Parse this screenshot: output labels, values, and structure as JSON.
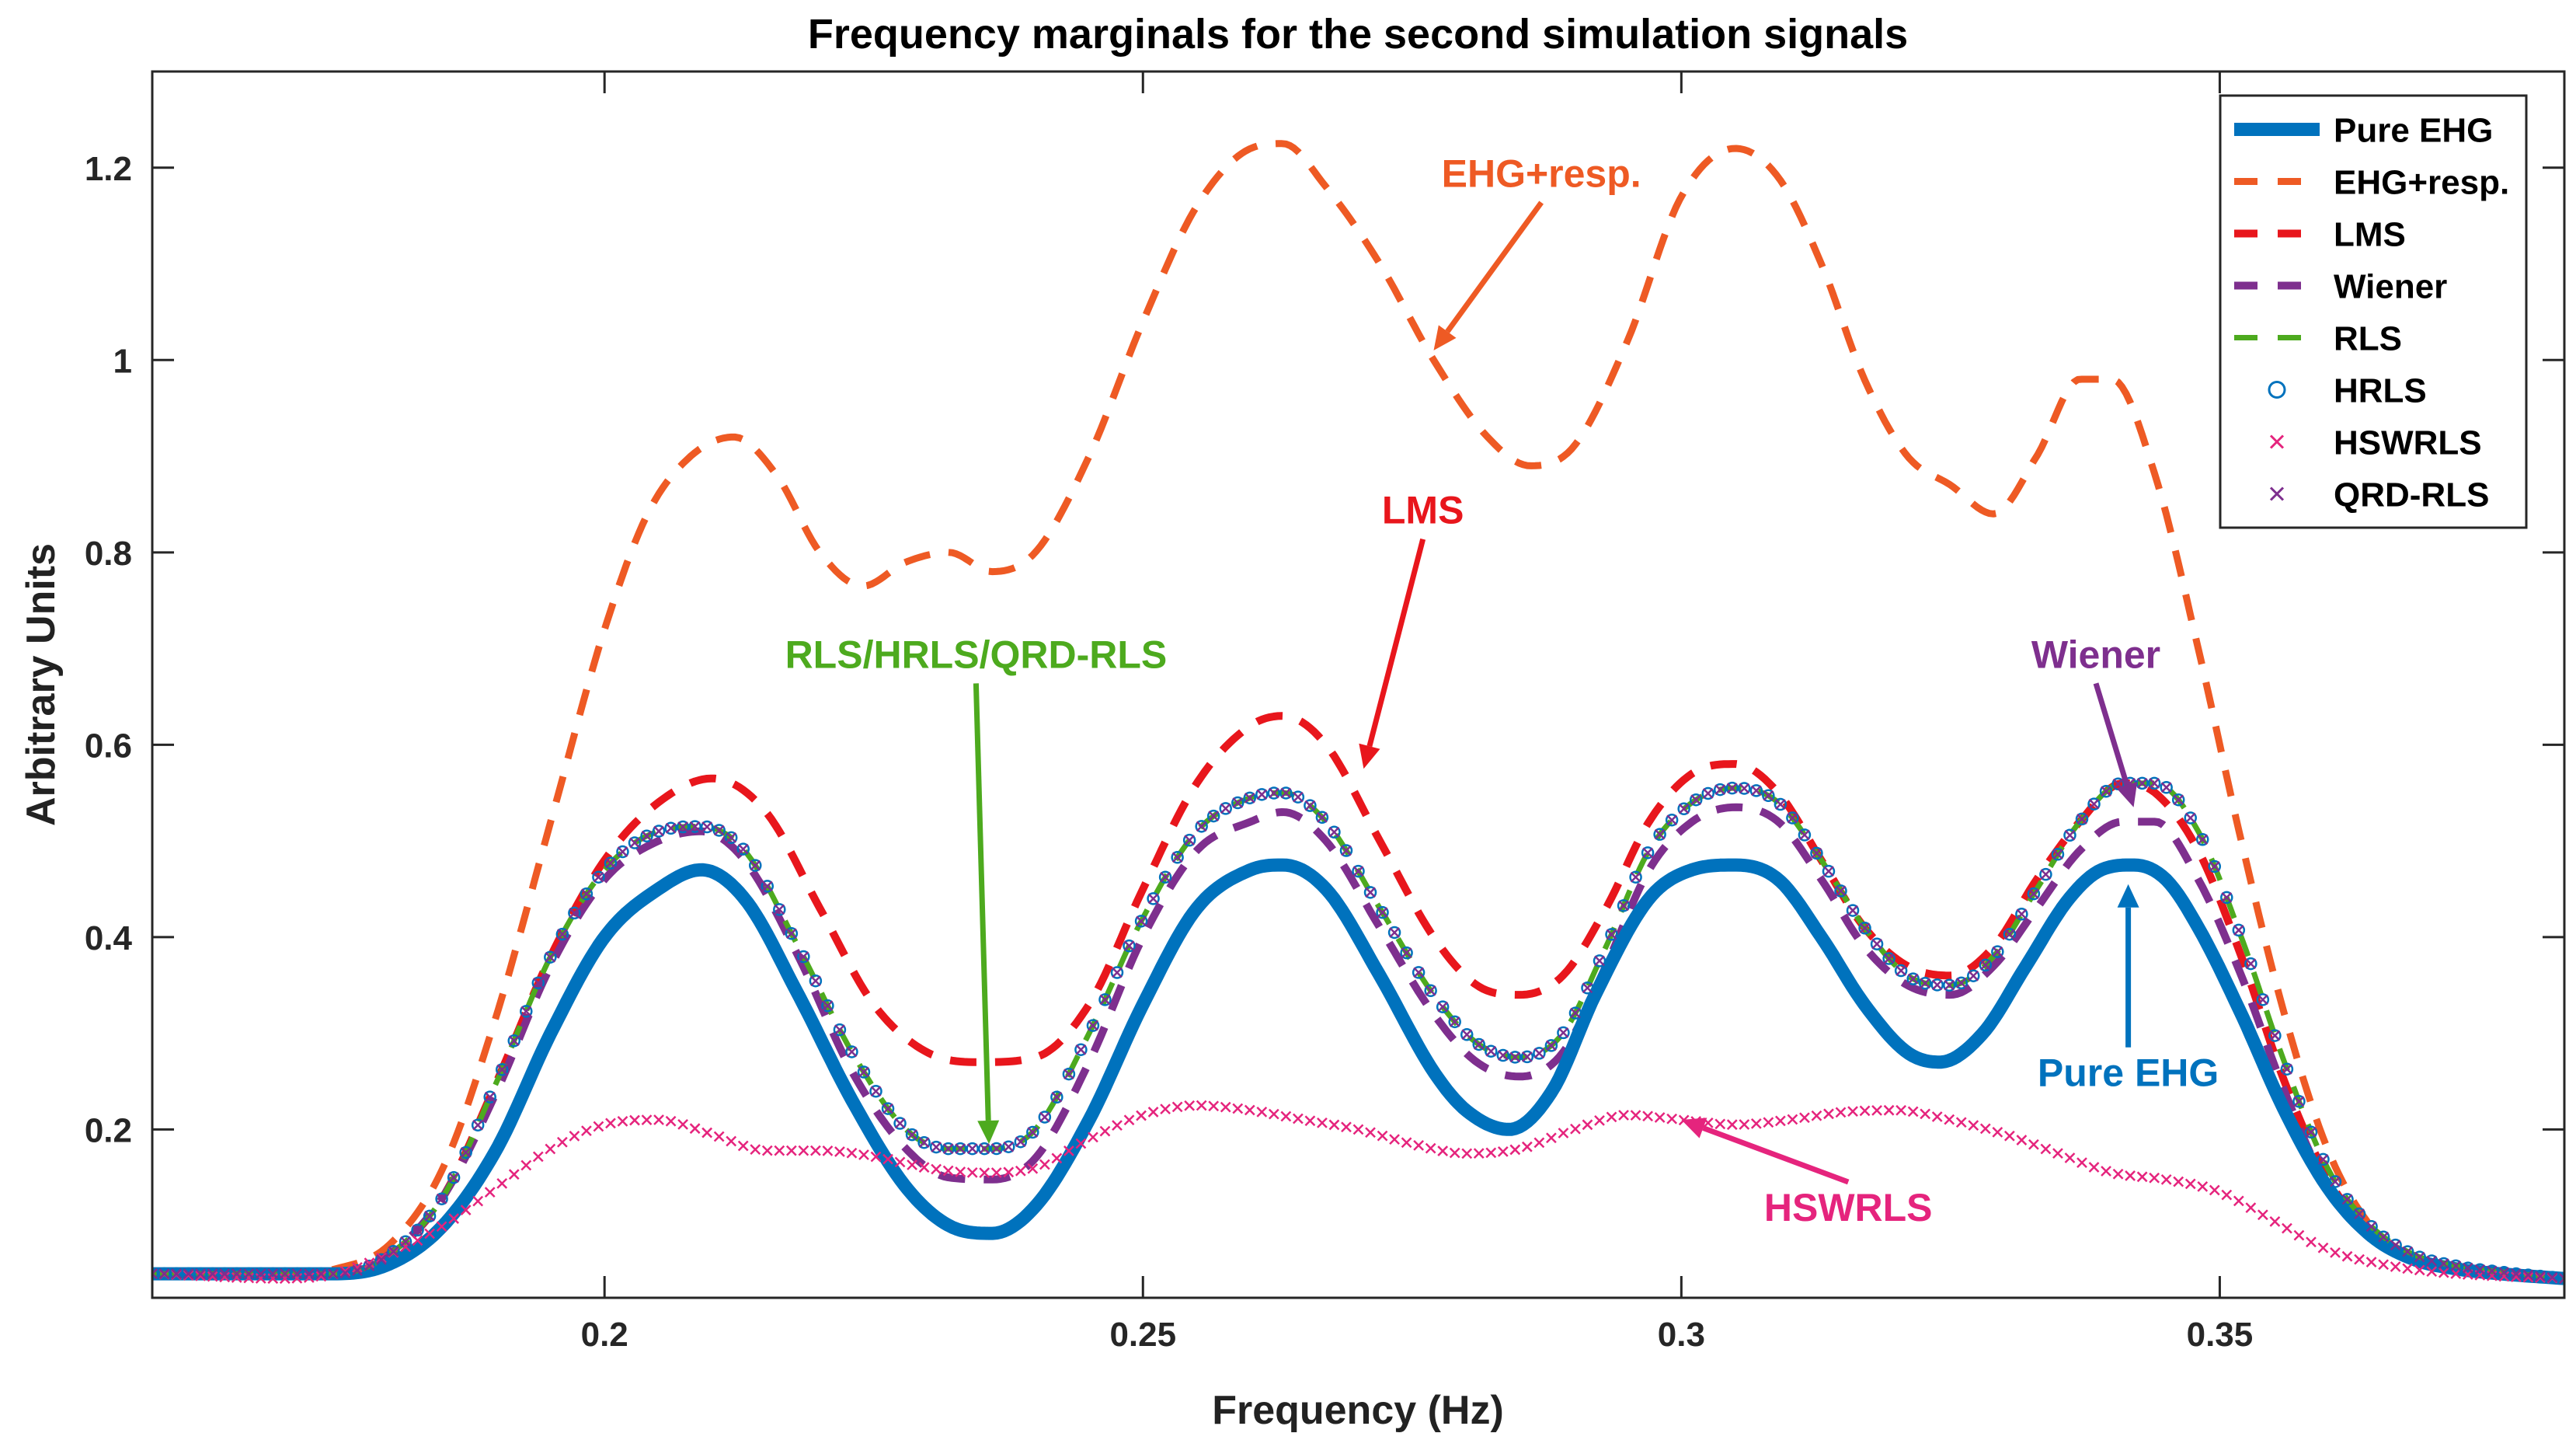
{
  "chart_data": {
    "type": "line",
    "title": "Frequency marginals for the second simulation signals",
    "xlabel": "Frequency (Hz)",
    "ylabel": "Arbitrary Units",
    "xlim": [
      0.158,
      0.382
    ],
    "ylim": [
      0.025,
      1.3
    ],
    "xticks": [
      0.2,
      0.25,
      0.3,
      0.35
    ],
    "xtick_labels": [
      "0.2",
      "0.25",
      "0.3",
      "0.35"
    ],
    "yticks": [
      0.2,
      0.4,
      0.6,
      0.8,
      1.0,
      1.2
    ],
    "ytick_labels": [
      "0.2",
      "0.4",
      "0.6",
      "0.8",
      "1",
      "1.2"
    ],
    "grid": false,
    "legend_position": "top-right",
    "series": [
      {
        "name": "Pure EHG",
        "style": "solid",
        "marker": "none",
        "color": "#0072BD",
        "x": [
          0.158,
          0.17,
          0.175,
          0.18,
          0.185,
          0.19,
          0.195,
          0.2,
          0.205,
          0.209,
          0.213,
          0.218,
          0.223,
          0.228,
          0.232,
          0.236,
          0.24,
          0.245,
          0.25,
          0.255,
          0.26,
          0.263,
          0.267,
          0.272,
          0.277,
          0.28,
          0.284,
          0.288,
          0.292,
          0.297,
          0.301,
          0.305,
          0.309,
          0.313,
          0.317,
          0.321,
          0.324,
          0.328,
          0.332,
          0.336,
          0.339,
          0.342,
          0.345,
          0.348,
          0.352,
          0.356,
          0.36,
          0.364,
          0.368,
          0.372,
          0.376,
          0.382
        ],
        "y": [
          0.05,
          0.05,
          0.05,
          0.06,
          0.1,
          0.18,
          0.3,
          0.4,
          0.45,
          0.47,
          0.44,
          0.34,
          0.23,
          0.14,
          0.1,
          0.092,
          0.12,
          0.21,
          0.33,
          0.43,
          0.47,
          0.475,
          0.45,
          0.36,
          0.26,
          0.22,
          0.2,
          0.24,
          0.34,
          0.44,
          0.47,
          0.475,
          0.46,
          0.4,
          0.33,
          0.28,
          0.27,
          0.3,
          0.37,
          0.44,
          0.47,
          0.475,
          0.46,
          0.41,
          0.32,
          0.22,
          0.14,
          0.09,
          0.065,
          0.055,
          0.05,
          0.045
        ]
      },
      {
        "name": "EHG+resp.",
        "style": "dashed",
        "marker": "none",
        "color": "#EE5A24",
        "x": [
          0.158,
          0.17,
          0.175,
          0.18,
          0.185,
          0.19,
          0.195,
          0.2,
          0.204,
          0.208,
          0.212,
          0.216,
          0.22,
          0.224,
          0.228,
          0.232,
          0.236,
          0.24,
          0.245,
          0.25,
          0.255,
          0.26,
          0.263,
          0.267,
          0.272,
          0.277,
          0.282,
          0.286,
          0.29,
          0.295,
          0.3,
          0.305,
          0.309,
          0.313,
          0.317,
          0.321,
          0.325,
          0.329,
          0.333,
          0.337,
          0.34,
          0.344,
          0.348,
          0.352,
          0.356,
          0.36,
          0.364,
          0.368,
          0.372,
          0.376,
          0.382
        ],
        "y": [
          0.05,
          0.05,
          0.055,
          0.08,
          0.16,
          0.32,
          0.52,
          0.72,
          0.84,
          0.9,
          0.92,
          0.88,
          0.8,
          0.765,
          0.79,
          0.8,
          0.78,
          0.8,
          0.9,
          1.04,
          1.16,
          1.22,
          1.225,
          1.18,
          1.1,
          1.0,
          0.92,
          0.89,
          0.91,
          1.02,
          1.17,
          1.22,
          1.19,
          1.1,
          0.98,
          0.9,
          0.87,
          0.84,
          0.9,
          0.98,
          0.98,
          0.88,
          0.7,
          0.5,
          0.32,
          0.18,
          0.1,
          0.068,
          0.056,
          0.05,
          0.045
        ]
      },
      {
        "name": "LMS",
        "style": "dashed",
        "marker": "none",
        "color": "#E8161C",
        "x": [
          0.158,
          0.17,
          0.175,
          0.18,
          0.185,
          0.19,
          0.195,
          0.2,
          0.205,
          0.21,
          0.215,
          0.22,
          0.225,
          0.23,
          0.235,
          0.24,
          0.245,
          0.25,
          0.255,
          0.26,
          0.263,
          0.267,
          0.272,
          0.277,
          0.281,
          0.285,
          0.289,
          0.293,
          0.297,
          0.301,
          0.305,
          0.309,
          0.313,
          0.317,
          0.321,
          0.325,
          0.329,
          0.333,
          0.337,
          0.341,
          0.344,
          0.348,
          0.352,
          0.356,
          0.36,
          0.364,
          0.368,
          0.372,
          0.376,
          0.382
        ],
        "y": [
          0.05,
          0.05,
          0.05,
          0.07,
          0.13,
          0.25,
          0.38,
          0.48,
          0.54,
          0.565,
          0.53,
          0.43,
          0.33,
          0.28,
          0.27,
          0.275,
          0.33,
          0.45,
          0.56,
          0.62,
          0.63,
          0.6,
          0.5,
          0.4,
          0.35,
          0.34,
          0.36,
          0.43,
          0.52,
          0.57,
          0.58,
          0.55,
          0.48,
          0.41,
          0.37,
          0.36,
          0.39,
          0.46,
          0.52,
          0.56,
          0.55,
          0.49,
          0.38,
          0.25,
          0.15,
          0.09,
          0.065,
          0.055,
          0.05,
          0.045
        ]
      },
      {
        "name": "Wiener",
        "style": "dashed",
        "marker": "none",
        "color": "#7E2F8E",
        "x": [
          0.158,
          0.17,
          0.175,
          0.18,
          0.185,
          0.19,
          0.195,
          0.2,
          0.205,
          0.209,
          0.213,
          0.218,
          0.223,
          0.228,
          0.232,
          0.236,
          0.24,
          0.245,
          0.25,
          0.255,
          0.26,
          0.263,
          0.267,
          0.272,
          0.277,
          0.281,
          0.285,
          0.289,
          0.293,
          0.297,
          0.301,
          0.305,
          0.309,
          0.313,
          0.317,
          0.321,
          0.325,
          0.329,
          0.333,
          0.337,
          0.341,
          0.344,
          0.348,
          0.352,
          0.356,
          0.36,
          0.364,
          0.368,
          0.372,
          0.376,
          0.382
        ],
        "y": [
          0.05,
          0.05,
          0.05,
          0.07,
          0.13,
          0.24,
          0.37,
          0.46,
          0.5,
          0.51,
          0.48,
          0.38,
          0.26,
          0.18,
          0.15,
          0.148,
          0.17,
          0.27,
          0.4,
          0.49,
          0.52,
          0.53,
          0.5,
          0.41,
          0.32,
          0.27,
          0.255,
          0.28,
          0.37,
          0.47,
          0.52,
          0.535,
          0.52,
          0.46,
          0.39,
          0.35,
          0.34,
          0.37,
          0.43,
          0.49,
          0.52,
          0.52,
          0.46,
          0.36,
          0.24,
          0.14,
          0.09,
          0.065,
          0.055,
          0.05,
          0.045
        ]
      },
      {
        "name": "RLS",
        "style": "dashed",
        "marker": "none",
        "color": "#4DAA1E",
        "x": [
          0.158,
          0.17,
          0.175,
          0.18,
          0.185,
          0.19,
          0.195,
          0.2,
          0.205,
          0.209,
          0.213,
          0.218,
          0.223,
          0.228,
          0.232,
          0.236,
          0.24,
          0.245,
          0.25,
          0.255,
          0.26,
          0.263,
          0.267,
          0.272,
          0.277,
          0.281,
          0.285,
          0.289,
          0.293,
          0.297,
          0.301,
          0.305,
          0.309,
          0.313,
          0.317,
          0.321,
          0.325,
          0.329,
          0.333,
          0.337,
          0.341,
          0.344,
          0.348,
          0.352,
          0.356,
          0.36,
          0.364,
          0.368,
          0.372,
          0.376,
          0.382
        ],
        "y": [
          0.05,
          0.05,
          0.05,
          0.07,
          0.13,
          0.25,
          0.38,
          0.47,
          0.51,
          0.515,
          0.49,
          0.39,
          0.28,
          0.2,
          0.18,
          0.18,
          0.2,
          0.3,
          0.42,
          0.51,
          0.545,
          0.55,
          0.52,
          0.43,
          0.34,
          0.29,
          0.275,
          0.3,
          0.39,
          0.49,
          0.54,
          0.555,
          0.54,
          0.48,
          0.41,
          0.36,
          0.35,
          0.38,
          0.45,
          0.52,
          0.56,
          0.56,
          0.51,
          0.4,
          0.27,
          0.16,
          0.1,
          0.07,
          0.058,
          0.052,
          0.045
        ]
      },
      {
        "name": "HRLS",
        "style": "none",
        "marker": "circle",
        "color": "#0072BD",
        "x": [
          0.158,
          0.17,
          0.175,
          0.18,
          0.185,
          0.19,
          0.195,
          0.2,
          0.205,
          0.209,
          0.213,
          0.218,
          0.223,
          0.228,
          0.232,
          0.236,
          0.24,
          0.245,
          0.25,
          0.255,
          0.26,
          0.263,
          0.267,
          0.272,
          0.277,
          0.281,
          0.285,
          0.289,
          0.293,
          0.297,
          0.301,
          0.305,
          0.309,
          0.313,
          0.317,
          0.321,
          0.325,
          0.329,
          0.333,
          0.337,
          0.341,
          0.344,
          0.348,
          0.352,
          0.356,
          0.36,
          0.364,
          0.368,
          0.372,
          0.376,
          0.382
        ],
        "y": [
          0.05,
          0.05,
          0.05,
          0.07,
          0.13,
          0.25,
          0.38,
          0.47,
          0.51,
          0.515,
          0.49,
          0.39,
          0.28,
          0.2,
          0.18,
          0.18,
          0.2,
          0.3,
          0.42,
          0.51,
          0.545,
          0.55,
          0.52,
          0.43,
          0.34,
          0.29,
          0.275,
          0.3,
          0.39,
          0.49,
          0.54,
          0.555,
          0.54,
          0.48,
          0.41,
          0.36,
          0.35,
          0.38,
          0.45,
          0.52,
          0.56,
          0.56,
          0.51,
          0.4,
          0.27,
          0.16,
          0.1,
          0.07,
          0.058,
          0.052,
          0.045
        ]
      },
      {
        "name": "HSWRLS",
        "style": "none",
        "marker": "x",
        "color": "#E5247D",
        "x": [
          0.158,
          0.17,
          0.175,
          0.18,
          0.185,
          0.19,
          0.195,
          0.2,
          0.205,
          0.21,
          0.215,
          0.22,
          0.225,
          0.23,
          0.235,
          0.24,
          0.245,
          0.25,
          0.255,
          0.26,
          0.265,
          0.27,
          0.275,
          0.28,
          0.285,
          0.29,
          0.295,
          0.3,
          0.305,
          0.31,
          0.315,
          0.32,
          0.325,
          0.33,
          0.335,
          0.34,
          0.345,
          0.35,
          0.355,
          0.36,
          0.365,
          0.37,
          0.375,
          0.382
        ],
        "y": [
          0.05,
          0.045,
          0.05,
          0.07,
          0.1,
          0.14,
          0.18,
          0.205,
          0.21,
          0.195,
          0.178,
          0.178,
          0.172,
          0.16,
          0.155,
          0.16,
          0.19,
          0.215,
          0.225,
          0.22,
          0.21,
          0.2,
          0.185,
          0.175,
          0.18,
          0.2,
          0.215,
          0.21,
          0.205,
          0.21,
          0.218,
          0.22,
          0.21,
          0.195,
          0.175,
          0.155,
          0.148,
          0.135,
          0.105,
          0.075,
          0.06,
          0.052,
          0.048,
          0.045
        ]
      },
      {
        "name": "QRD-RLS",
        "style": "none",
        "marker": "x",
        "color": "#7E2F8E",
        "x": [
          0.158,
          0.17,
          0.175,
          0.18,
          0.185,
          0.19,
          0.195,
          0.2,
          0.205,
          0.209,
          0.213,
          0.218,
          0.223,
          0.228,
          0.232,
          0.236,
          0.24,
          0.245,
          0.25,
          0.255,
          0.26,
          0.263,
          0.267,
          0.272,
          0.277,
          0.281,
          0.285,
          0.289,
          0.293,
          0.297,
          0.301,
          0.305,
          0.309,
          0.313,
          0.317,
          0.321,
          0.325,
          0.329,
          0.333,
          0.337,
          0.341,
          0.344,
          0.348,
          0.352,
          0.356,
          0.36,
          0.364,
          0.368,
          0.372,
          0.376,
          0.382
        ],
        "y": [
          0.05,
          0.05,
          0.05,
          0.07,
          0.13,
          0.25,
          0.38,
          0.47,
          0.51,
          0.515,
          0.49,
          0.39,
          0.28,
          0.2,
          0.18,
          0.18,
          0.2,
          0.3,
          0.42,
          0.51,
          0.545,
          0.55,
          0.52,
          0.43,
          0.34,
          0.29,
          0.275,
          0.3,
          0.39,
          0.49,
          0.54,
          0.555,
          0.54,
          0.48,
          0.41,
          0.36,
          0.35,
          0.38,
          0.45,
          0.52,
          0.56,
          0.56,
          0.51,
          0.4,
          0.27,
          0.16,
          0.1,
          0.07,
          0.058,
          0.052,
          0.045
        ]
      }
    ],
    "annotations": [
      {
        "text": "EHG+resp.",
        "color": "#EE5A24",
        "label_x": 0.287,
        "label_y": 1.18,
        "tip_x": 0.277,
        "tip_y": 1.01
      },
      {
        "text": "LMS",
        "color": "#E8161C",
        "label_x": 0.276,
        "label_y": 0.83,
        "tip_x": 0.2705,
        "tip_y": 0.575
      },
      {
        "text": "RLS/HRLS/QRD-RLS",
        "color": "#4DAA1E",
        "label_x": 0.2345,
        "label_y": 0.68,
        "tip_x": 0.2357,
        "tip_y": 0.185
      },
      {
        "text": "Wiener",
        "color": "#7E2F8E",
        "label_x": 0.3385,
        "label_y": 0.68,
        "tip_x": 0.342,
        "tip_y": 0.535
      },
      {
        "text": "Pure EHG",
        "color": "#0072BD",
        "label_x": 0.3415,
        "label_y": 0.245,
        "tip_x": 0.3415,
        "tip_y": 0.455
      },
      {
        "text": "HSWRLS",
        "color": "#E5247D",
        "label_x": 0.3155,
        "label_y": 0.105,
        "tip_x": 0.3,
        "tip_y": 0.21
      }
    ]
  }
}
